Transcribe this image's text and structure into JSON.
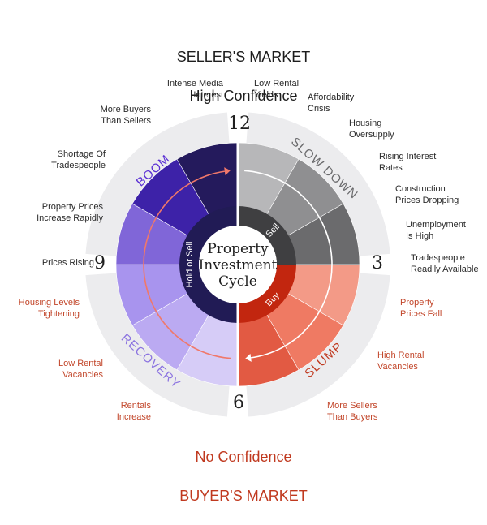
{
  "header": {
    "title_line1": "SELLER'S MARKET",
    "title_line2": "High Confidence"
  },
  "footer": {
    "line1": "No Confidence",
    "line2": "BUYER'S MARKET"
  },
  "center": {
    "line1": "Property",
    "line2": "Investment",
    "line3": "Cycle"
  },
  "inner_ring": {
    "sell": "Sell",
    "buy": "Buy",
    "hold": "Hold or Sell"
  },
  "positions": {
    "top": "12",
    "right": "3",
    "bottom": "6",
    "left": "9"
  },
  "phases": {
    "boom": "BOOM",
    "slow_down": "SLOW DOWN",
    "slump": "SLUMP",
    "recovery": "RECOVERY"
  },
  "labels": {
    "intense_media": "Intense Media\nInterest",
    "low_rental_yields": "Low Rental\nYields",
    "affordability": "Affordability\nCrisis",
    "housing_oversupply": "Housing\nOversupply",
    "rising_interest": "Rising Interest\nRates",
    "construction_prices": "Construction\nPrices Dropping",
    "unemployment": "Unemployment\nIs High",
    "tradespeople_available": "Tradespeople\nReadily Available",
    "property_prices_fall": "Property\nPrices Fall",
    "high_rental_vacancies": "High Rental\nVacancies",
    "more_sellers": "More Sellers\nThan Buyers",
    "rentals_increase": "Rentals\nIncrease",
    "low_rental_vacancies": "Low Rental\nVacancies",
    "housing_tightening": "Housing Levels\nTightening",
    "prices_rising": "Prices Rising",
    "prices_increase_rapidly": "Property Prices\nIncrease Rapidly",
    "shortage_tradespeople": "Shortage Of\nTradespeople",
    "more_buyers": "More Buyers\nThan Sellers"
  },
  "colors": {
    "boom": [
      "#241a5c",
      "#3d22a8",
      "#5a2fd4"
    ],
    "boom_lower": [
      "#8066d8",
      "#9a83e2"
    ],
    "recovery": [
      "#a894ee",
      "#bbaaf2",
      "#d6ccf7"
    ],
    "slowdown": [
      "#b7b7b9",
      "#8f8f91",
      "#6b6b6d",
      "#4b4b4d"
    ],
    "slump": [
      "#f39a87",
      "#ef7a63",
      "#e25a43",
      "#c9412c"
    ],
    "band": "#ececee",
    "hub_left": "#211b55",
    "hub_right_top": "#3f3f41",
    "hub_right_bottom": "#c2260f",
    "accent_orange": "#c0391f"
  }
}
